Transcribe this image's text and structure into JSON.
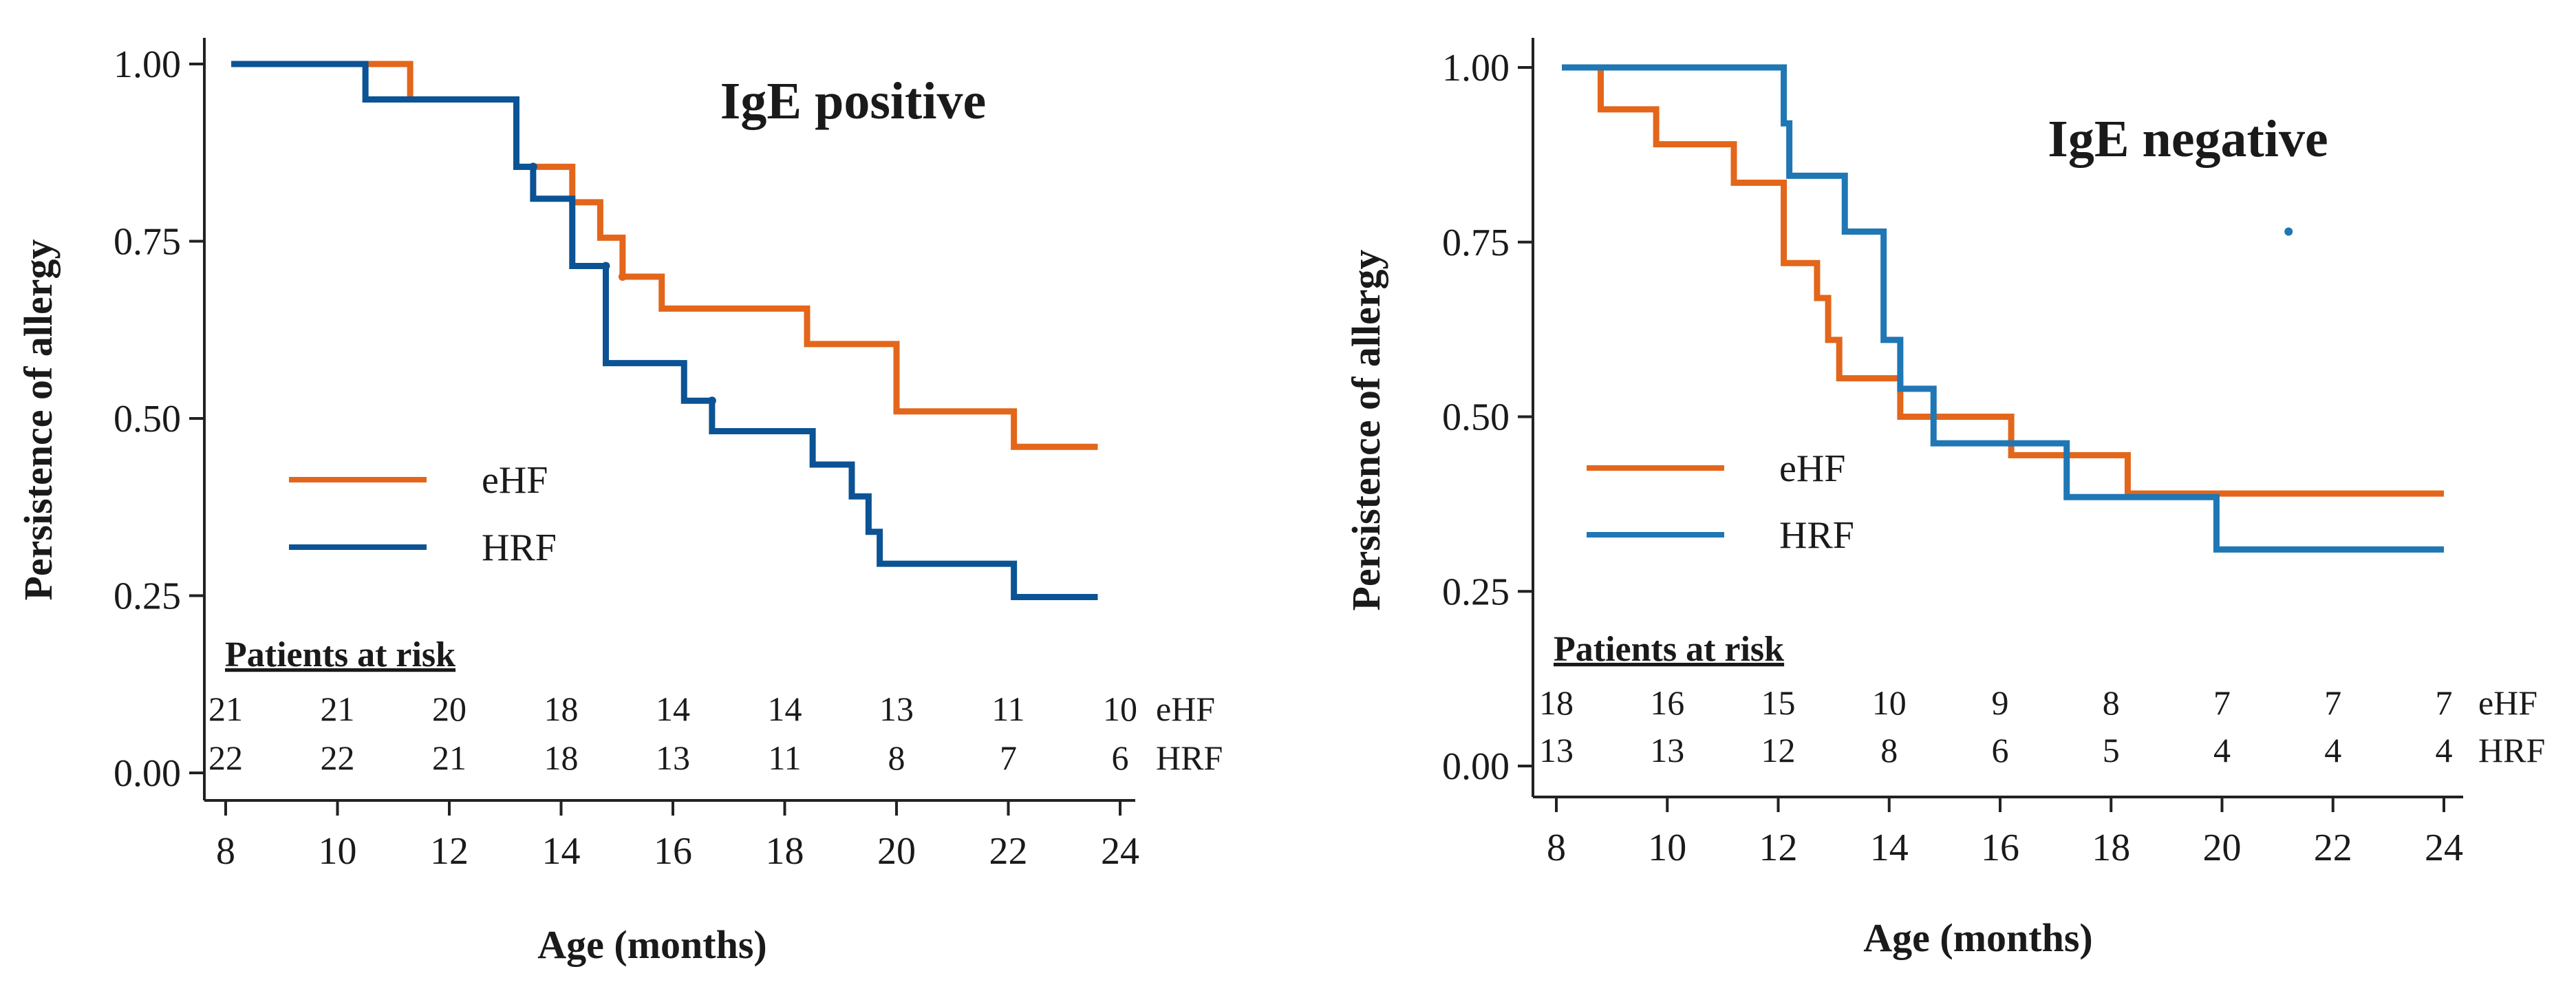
{
  "figure": {
    "panels_count": 2
  },
  "chart_data": [
    {
      "type": "line",
      "step": true,
      "title": "IgE positive",
      "xlabel": "Age (months)",
      "ylabel": "Persistence of allergy",
      "xlim": [
        8,
        24
      ],
      "ylim": [
        0,
        1
      ],
      "x_ticks": [
        "8",
        "10",
        "12",
        "14",
        "16",
        "18",
        "20",
        "22",
        "24"
      ],
      "y_ticks": [
        "0.00",
        "0.25",
        "0.50",
        "0.75",
        "1.00"
      ],
      "legend": {
        "placement": "center-left",
        "entries": [
          "eHF",
          "HRF"
        ]
      },
      "series": [
        {
          "name": "eHF",
          "color": "#e3661b",
          "x": [
            8.1,
            11.3,
            13.2,
            14.2,
            14.7,
            15.1,
            15.8,
            18.4,
            20.0,
            22.1,
            23.6
          ],
          "y": [
            1.0,
            0.95,
            0.855,
            0.805,
            0.755,
            0.7,
            0.655,
            0.605,
            0.51,
            0.46,
            0.46
          ]
        },
        {
          "name": "HRF",
          "color": "#0b5394",
          "x": [
            8.1,
            10.5,
            13.2,
            13.5,
            14.2,
            14.8,
            16.2,
            16.7,
            18.5,
            19.2,
            19.5,
            19.7,
            22.1,
            23.6
          ],
          "y": [
            1.0,
            0.95,
            0.855,
            0.81,
            0.715,
            0.578,
            0.525,
            0.482,
            0.435,
            0.39,
            0.34,
            0.295,
            0.248,
            0.248
          ]
        }
      ],
      "censor_marks": [
        {
          "series": "eHF",
          "x": 15.1,
          "y": 0.7
        },
        {
          "series": "HRF",
          "x": 13.5,
          "y": 0.855
        },
        {
          "series": "HRF",
          "x": 14.8,
          "y": 0.715
        },
        {
          "series": "HRF",
          "x": 16.7,
          "y": 0.525
        }
      ],
      "risk_table": {
        "heading": "Patients at risk",
        "rows": [
          {
            "label": "eHF",
            "values": [
              "21",
              "21",
              "20",
              "18",
              "14",
              "14",
              "13",
              "11",
              "10"
            ]
          },
          {
            "label": "HRF",
            "values": [
              "22",
              "22",
              "21",
              "18",
              "13",
              "11",
              "8",
              "7",
              "6"
            ]
          }
        ]
      }
    },
    {
      "type": "line",
      "step": true,
      "title": "IgE negative",
      "xlabel": "Age (months)",
      "ylabel": "Persistence of allergy",
      "xlim": [
        8,
        24
      ],
      "ylim": [
        0,
        1
      ],
      "x_ticks": [
        "8",
        "10",
        "12",
        "14",
        "16",
        "18",
        "20",
        "22",
        "24"
      ],
      "y_ticks": [
        "0.00",
        "0.25",
        "0.50",
        "0.75",
        "1.00"
      ],
      "legend": {
        "placement": "center-left",
        "entries": [
          "eHF",
          "HRF"
        ]
      },
      "series": [
        {
          "name": "eHF",
          "color": "#e3661b",
          "x": [
            8.1,
            8.8,
            9.8,
            11.2,
            12.1,
            12.7,
            12.9,
            13.1,
            13.3,
            14.2,
            16.2,
            18.3,
            24.0
          ],
          "y": [
            1.0,
            0.94,
            0.89,
            0.835,
            0.72,
            0.67,
            0.61,
            0.555,
            0.555,
            0.5,
            0.445,
            0.39,
            0.39
          ]
        },
        {
          "name": "HRF",
          "color": "#1f77b4",
          "x": [
            8.1,
            12.1,
            12.2,
            12.3,
            13.2,
            13.9,
            14.2,
            14.8,
            17.2,
            19.9,
            24.0
          ],
          "y": [
            1.0,
            0.92,
            0.845,
            0.845,
            0.765,
            0.61,
            0.54,
            0.462,
            0.385,
            0.31,
            0.31
          ]
        }
      ],
      "censor_marks": [
        {
          "series": "HRF",
          "x": 21.2,
          "y": 0.765
        }
      ],
      "risk_table": {
        "heading": "Patients at risk",
        "rows": [
          {
            "label": "eHF",
            "values": [
              "18",
              "16",
              "15",
              "10",
              "9",
              "8",
              "7",
              "7",
              "7"
            ]
          },
          {
            "label": "HRF",
            "values": [
              "13",
              "13",
              "12",
              "8",
              "6",
              "5",
              "4",
              "4",
              "4"
            ]
          }
        ]
      }
    }
  ]
}
